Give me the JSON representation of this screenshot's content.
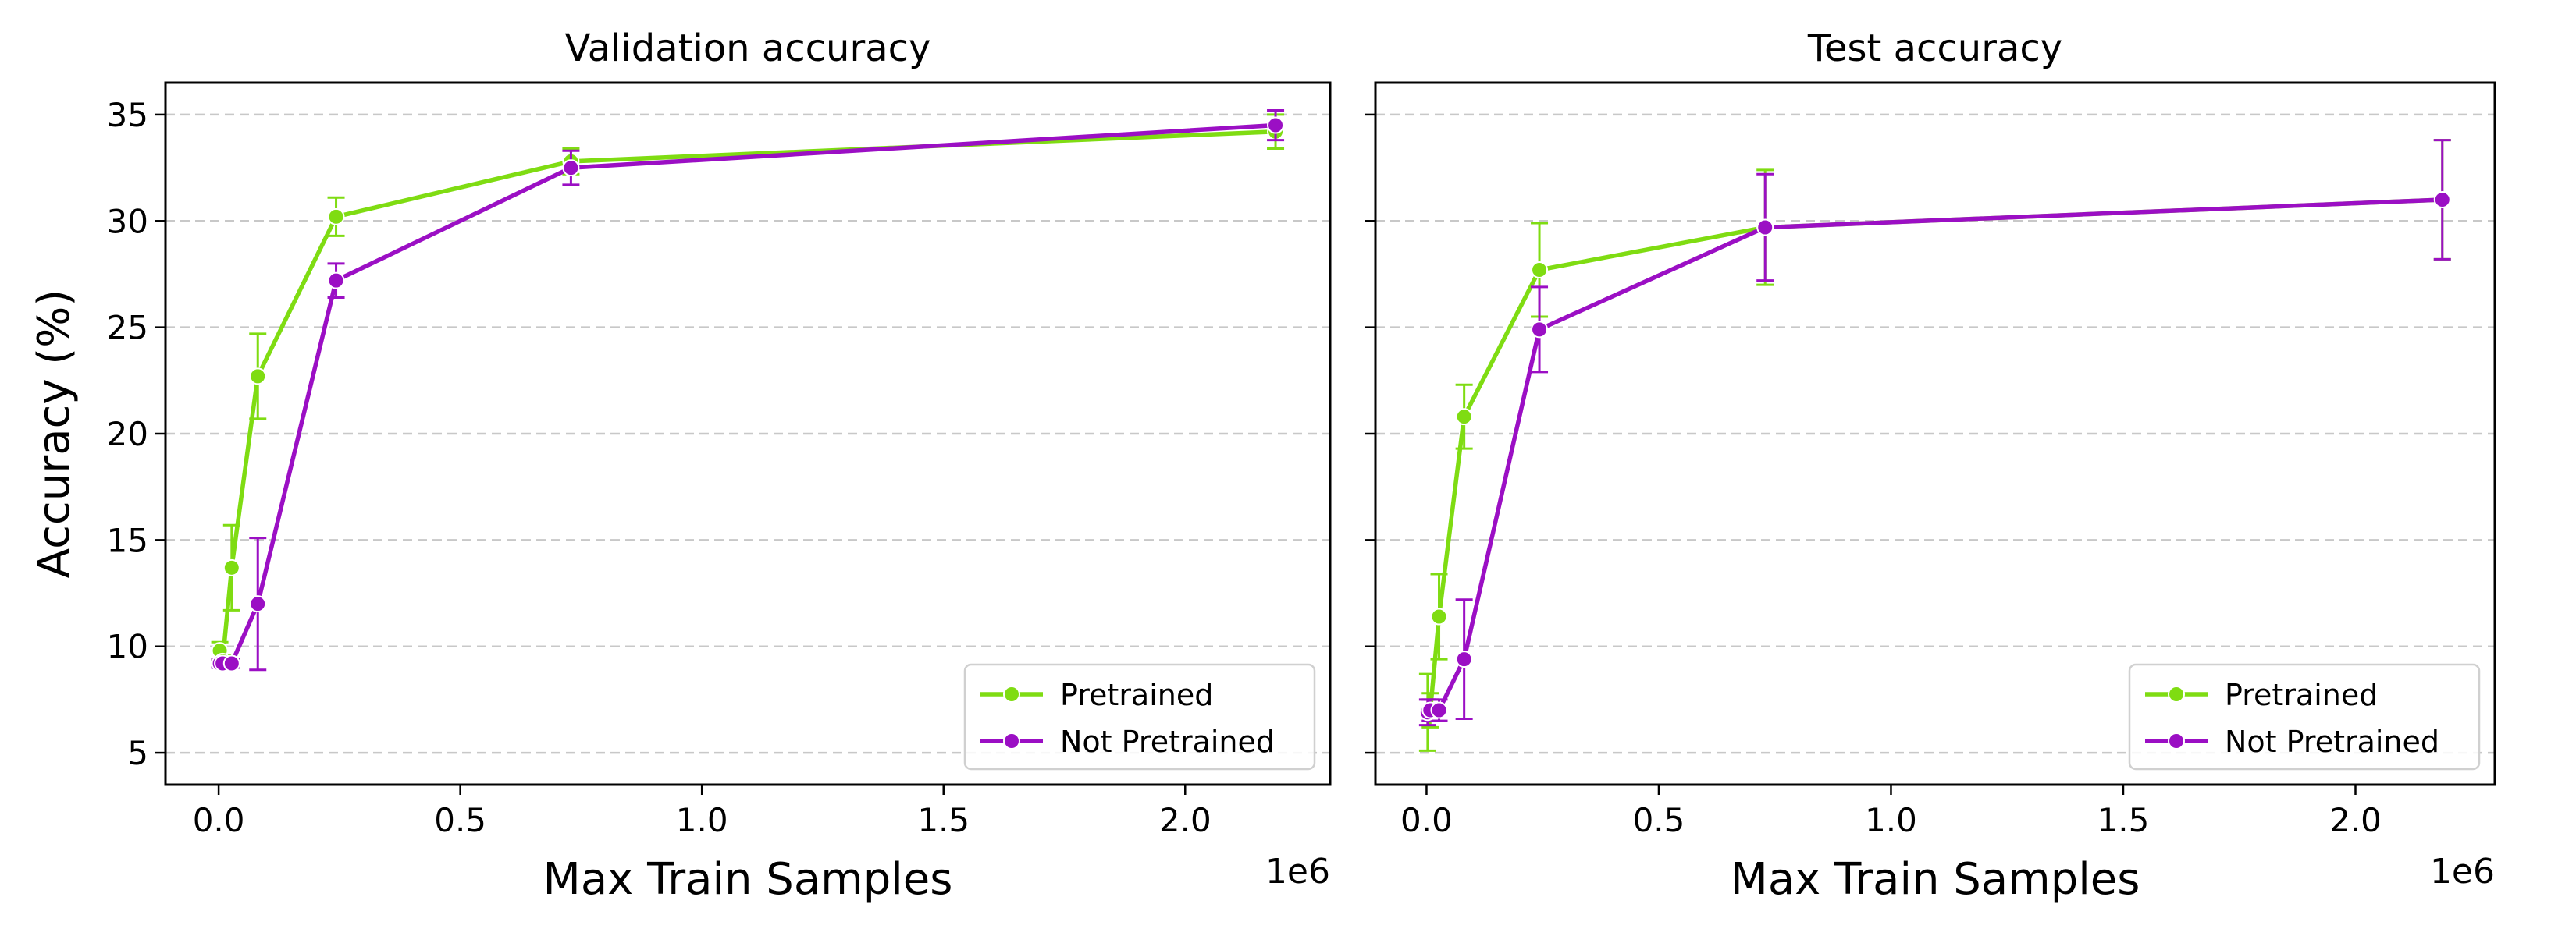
{
  "chart_data": [
    {
      "type": "line",
      "title": "Validation accuracy",
      "xlabel": "Max Train Samples",
      "ylabel": "Accuracy (%)",
      "x_multiplier_label": "1e6",
      "xlim": [
        -0.11,
        2.3
      ],
      "ylim": [
        3.5,
        36.5
      ],
      "xticks": [
        0.0,
        0.5,
        1.0,
        1.5,
        2.0
      ],
      "xtick_labels": [
        "0.0",
        "0.5",
        "1.0",
        "1.5",
        "2.0"
      ],
      "yticks": [
        5,
        10,
        15,
        20,
        25,
        30,
        35
      ],
      "ytick_labels": [
        "5",
        "10",
        "15",
        "20",
        "25",
        "30",
        "35"
      ],
      "grid": "y-dashed",
      "legend": "lower-right",
      "x": [
        0.0024,
        0.0081,
        0.027,
        0.081,
        0.243,
        0.729,
        2.187
      ],
      "series": [
        {
          "name": "Pretrained",
          "color": "#7fdc12",
          "values": [
            9.8,
            9.3,
            13.7,
            22.7,
            30.2,
            32.8,
            34.2
          ],
          "errors": [
            0.4,
            0.3,
            2.0,
            2.0,
            0.9,
            0.6,
            0.8
          ]
        },
        {
          "name": "Not Pretrained",
          "color": "#9b0fc4",
          "values": [
            9.2,
            9.2,
            9.2,
            12.0,
            27.2,
            32.5,
            34.5
          ],
          "errors": [
            0.2,
            0.2,
            0.2,
            3.1,
            0.8,
            0.8,
            0.7
          ]
        }
      ]
    },
    {
      "type": "line",
      "title": "Test accuracy",
      "xlabel": "Max Train Samples",
      "ylabel": "",
      "x_multiplier_label": "1e6",
      "xlim": [
        -0.11,
        2.3
      ],
      "ylim": [
        3.5,
        36.5
      ],
      "xticks": [
        0.0,
        0.5,
        1.0,
        1.5,
        2.0
      ],
      "xtick_labels": [
        "0.0",
        "0.5",
        "1.0",
        "1.5",
        "2.0"
      ],
      "yticks": [
        5,
        10,
        15,
        20,
        25,
        30,
        35
      ],
      "grid": "y-dashed",
      "legend": "lower-right",
      "x": [
        0.0024,
        0.0081,
        0.027,
        0.081,
        0.243,
        0.729,
        2.187
      ],
      "series": [
        {
          "name": "Pretrained",
          "color": "#7fdc12",
          "values": [
            6.9,
            7.0,
            11.4,
            20.8,
            27.7,
            29.7,
            31.0
          ],
          "errors": [
            1.8,
            0.8,
            2.0,
            1.5,
            2.2,
            2.7,
            2.8
          ]
        },
        {
          "name": "Not Pretrained",
          "color": "#9b0fc4",
          "values": [
            6.9,
            7.0,
            7.0,
            9.4,
            24.9,
            29.7,
            31.0
          ],
          "errors": [
            0.6,
            0.5,
            0.5,
            2.8,
            2.0,
            2.5,
            2.8
          ]
        }
      ]
    }
  ]
}
